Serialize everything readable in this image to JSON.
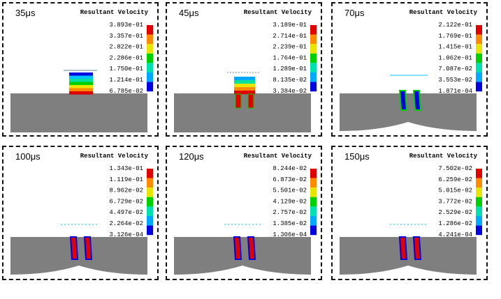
{
  "panels": [
    {
      "time": "35μs",
      "title": "Resultant Velocity",
      "legend": [
        "3.893e-01",
        "3.357e-01",
        "2.822e-01",
        "2.286e-01",
        "1.750e-01",
        "1.214e-01",
        "6.785e-02"
      ]
    },
    {
      "time": "45μs",
      "title": "Resultant Velocity",
      "legend": [
        "3.189e-01",
        "2.714e-01",
        "2.239e-01",
        "1.764e-01",
        "1.289e-01",
        "8.135e-02",
        "3.384e-02"
      ]
    },
    {
      "time": "70μs",
      "title": "Resultant Velocity",
      "legend": [
        "2.122e-01",
        "1.769e-01",
        "1.415e-01",
        "1.062e-01",
        "7.087e-02",
        "3.553e-02",
        "1.871e-04"
      ]
    },
    {
      "time": "100μs",
      "title": "Resultant Velocity",
      "legend": [
        "1.343e-01",
        "1.119e-01",
        "8.962e-02",
        "6.729e-02",
        "4.497e-02",
        "2.264e-02",
        "3.126e-04"
      ]
    },
    {
      "time": "120μs",
      "title": "Resultant Velocity",
      "legend": [
        "8.244e-02",
        "6.873e-02",
        "5.501e-02",
        "4.129e-02",
        "2.757e-02",
        "1.385e-02",
        "1.306e-04"
      ]
    },
    {
      "time": "150μs",
      "title": "Resultant Velocity",
      "legend": [
        "7.502e-02",
        "6.259e-02",
        "5.015e-02",
        "3.772e-02",
        "2.529e-02",
        "1.286e-02",
        "4.241e-04"
      ]
    }
  ]
}
